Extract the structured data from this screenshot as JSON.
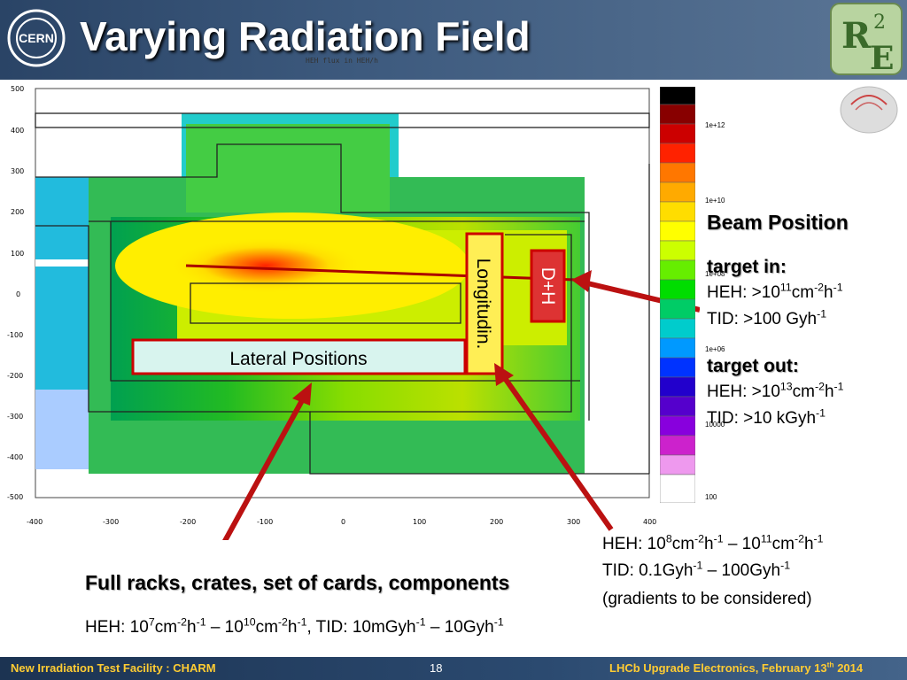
{
  "title": "Varying Radiation Field",
  "plot_caption": "HEH flux in HEH/h",
  "logo_left": "CERN",
  "plot": {
    "x_ticks": [
      "-400",
      "-300",
      "-200",
      "-100",
      "0",
      "100",
      "200",
      "300",
      "400"
    ],
    "y_ticks": [
      "500",
      "400",
      "300",
      "200",
      "100",
      "0",
      "-100",
      "-200",
      "-300",
      "-400",
      "-500"
    ],
    "scale_labels": [
      "1e+12",
      "1e+10",
      "1e+08",
      "1e+06",
      "10000",
      "100"
    ],
    "label_lateral": "Lateral Positions",
    "label_longitudinal": "Longitudin.",
    "label_dh": "D+H"
  },
  "beam": {
    "heading": "Beam Position",
    "target_in": "target in:",
    "in_heh_a": "HEH: >10",
    "in_heh_exp": "11",
    "in_heh_b": "cm",
    "in_heh_exp2": "-2",
    "in_heh_c": "h",
    "in_heh_exp3": "-1",
    "in_tid_a": "TID: >100 Gyh",
    "in_tid_exp": "-1",
    "target_out": "target out:",
    "out_heh_a": "HEH: >10",
    "out_heh_exp": "13",
    "out_heh_b": "cm",
    "out_heh_exp2": "-2",
    "out_heh_c": "h",
    "out_heh_exp3": "-1",
    "out_tid_a": "TID: >10 kGyh",
    "out_tid_exp": "-1"
  },
  "range_box": {
    "l1_a": "HEH: 10",
    "l1_e1": "8",
    "l1_b": "cm",
    "l1_e2": "-2",
    "l1_c": "h",
    "l1_e3": "-1",
    "l1_d": " – 10",
    "l1_e4": "11",
    "l1_f": "cm",
    "l1_e5": "-2",
    "l1_g": "h",
    "l1_e6": "-1",
    "l2_a": "TID: 0.1Gyh",
    "l2_e1": "-1",
    "l2_b": " – 100Gyh",
    "l2_e2": "-1",
    "l3": "(gradients to be considered)"
  },
  "racks": {
    "heading": "Full racks, crates, set of cards, components",
    "a": "HEH: 10",
    "e1": "7",
    "b": "cm",
    "e2": "-2",
    "c": "h",
    "e3": "-1",
    "d": " – 10",
    "e4": "10",
    "f": "cm",
    "e5": "-2",
    "g": "h",
    "e6": "-1",
    "h": ", TID: 10mGyh",
    "e7": "-1",
    "i": " – 10Gyh",
    "e8": "-1"
  },
  "footer": {
    "left": "New Irradiation Test Facility : CHARM",
    "page": "18",
    "right_a": "LHCb Upgrade Electronics, February 13",
    "right_sup": "th",
    "right_b": " 2014"
  }
}
